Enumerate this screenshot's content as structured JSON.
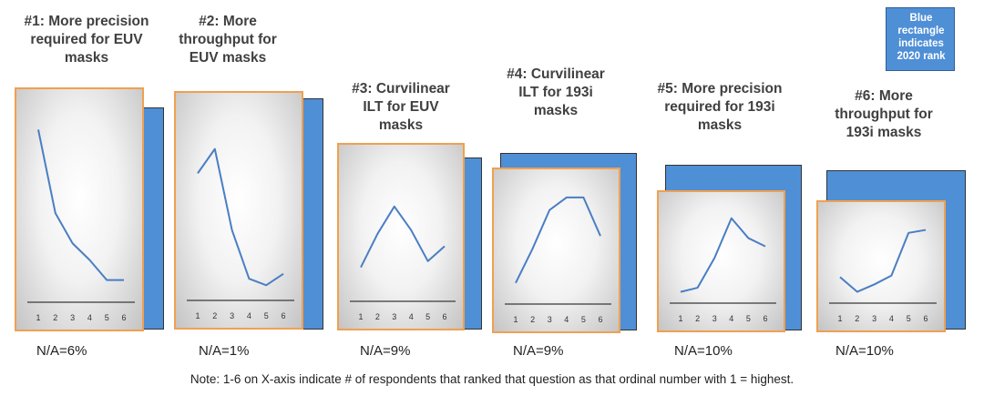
{
  "legend": {
    "text": "Blue\nrectangle\nindicates\n2020 rank",
    "color": "#4f8fd6"
  },
  "note": "Note: 1-6 on X-axis indicate # of respondents that ranked that question as that ordinal number with 1 = highest.",
  "colors": {
    "line": "#4a7ec3",
    "panel_border": "#f0a050",
    "blue_rect": "#4f8fd6"
  },
  "chart_data": [
    {
      "type": "line",
      "title": "#1: More precision\nrequired for EUV\nmasks",
      "x": [
        1,
        2,
        3,
        4,
        5,
        6
      ],
      "values": [
        100,
        50,
        32,
        22,
        10,
        10
      ],
      "na_label": "N/A=6%",
      "xlabel": "",
      "ylabel": "",
      "ylim": [
        0,
        110
      ],
      "grid": false
    },
    {
      "type": "line",
      "title": "#2: More\nthroughput for\nEUV masks",
      "x": [
        1,
        2,
        3,
        4,
        5,
        6
      ],
      "values": [
        75,
        90,
        40,
        10,
        6,
        13
      ],
      "na_label": "N/A=1%",
      "xlabel": "",
      "ylabel": "",
      "ylim": [
        0,
        110
      ],
      "grid": false
    },
    {
      "type": "line",
      "title": "#3: Curvilinear\nILT for EUV\nmasks",
      "x": [
        1,
        2,
        3,
        4,
        5,
        6
      ],
      "values": [
        23,
        50,
        72,
        53,
        28,
        40
      ],
      "na_label": "N/A=9%",
      "xlabel": "",
      "ylabel": "",
      "ylim": [
        0,
        110
      ],
      "grid": false
    },
    {
      "type": "line",
      "title": "#4: Curvilinear\nILT for 193i\nmasks",
      "x": [
        1,
        2,
        3,
        4,
        5,
        6
      ],
      "values": [
        15,
        48,
        85,
        97,
        97,
        60
      ],
      "na_label": "N/A=9%",
      "xlabel": "",
      "ylabel": "",
      "ylim": [
        0,
        110
      ],
      "grid": false
    },
    {
      "type": "line",
      "title": "#5: More precision\nrequired for 193i\nmasks",
      "x": [
        1,
        2,
        3,
        4,
        5,
        6
      ],
      "values": [
        7,
        12,
        48,
        96,
        72,
        62
      ],
      "na_label": "N/A=10%",
      "xlabel": "",
      "ylabel": "",
      "ylim": [
        0,
        110
      ],
      "grid": false
    },
    {
      "type": "line",
      "title": "#6: More\nthroughput for\n193i masks",
      "x": [
        1,
        2,
        3,
        4,
        5,
        6
      ],
      "values": [
        28,
        8,
        18,
        30,
        88,
        92
      ],
      "na_label": "N/A=10%",
      "xlabel": "",
      "ylabel": "",
      "ylim": [
        0,
        110
      ],
      "grid": false
    }
  ]
}
